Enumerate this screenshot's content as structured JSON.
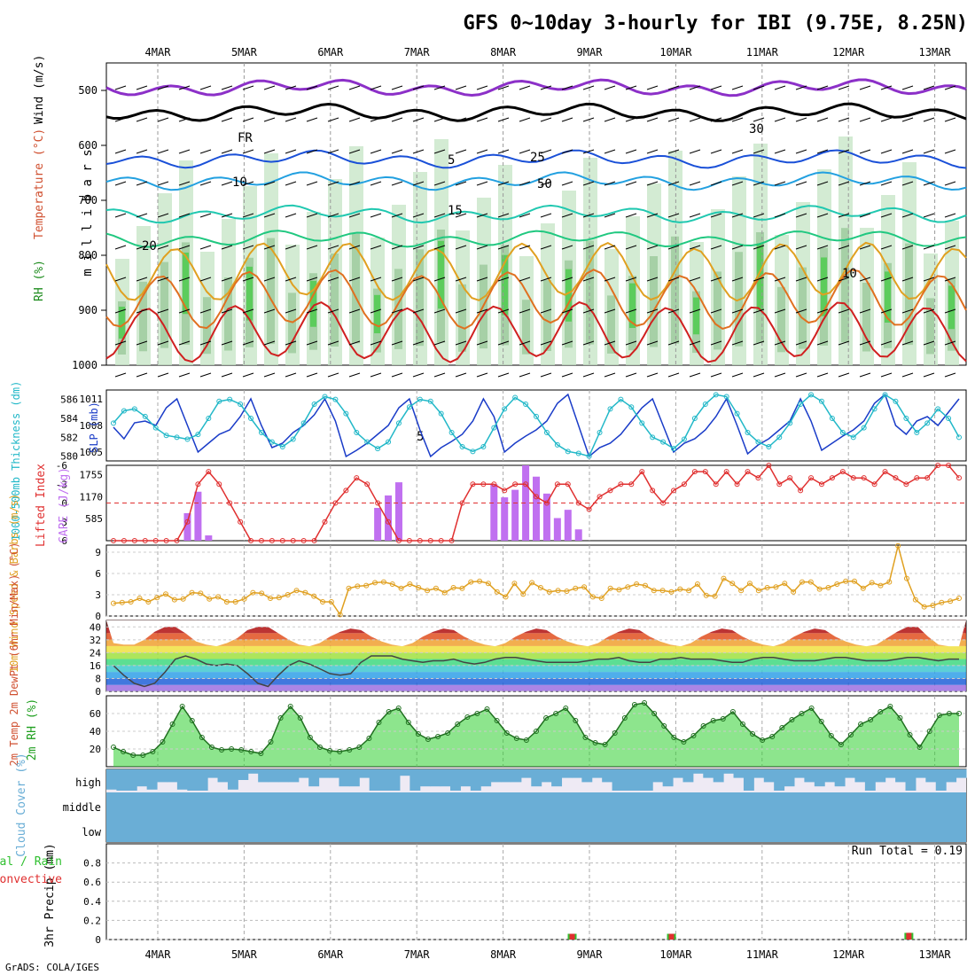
{
  "header": {
    "title": "GFS 0~10day 3-hourly for IBI (9.75E, 8.25N)",
    "credit": "GrADS: COLA/IGES"
  },
  "dates": [
    "4MAR",
    "5MAR",
    "6MAR",
    "7MAR",
    "8MAR",
    "9MAR",
    "10MAR",
    "11MAR",
    "12MAR",
    "13MAR"
  ],
  "colors": {
    "slp": "#1a3cc8",
    "thickness": "#22b8c8",
    "lifted_index": "#e03030",
    "cape": "#c070f0",
    "wind_speed": "#e0a020",
    "rh_line": "#20a020",
    "rh_fill": "#30d030",
    "cloud": "#6aaed6",
    "cloud_bg": "#eeeaf4",
    "precip_total": "#30c030",
    "precip_conv": "#e03030"
  },
  "chart_data": [
    {
      "panel": "sounding",
      "type": "heatmap",
      "ylabel": "m i l l i b a r s",
      "legend": [
        "RH (%)",
        "Temperature (°C)",
        "Wind (m/s)"
      ],
      "ylim": [
        1000,
        450
      ],
      "yticks": [
        500,
        600,
        700,
        800,
        900,
        1000
      ],
      "contour_labels": [
        "5",
        "FR",
        "5",
        "10",
        "15",
        "20",
        "25",
        "30",
        "50",
        "10"
      ]
    },
    {
      "panel": "slp_thickness",
      "type": "line",
      "ylabel_left": "1000-500mb Thickness (dm)",
      "ylabel_right": "SLP (mb)",
      "yticks_left": [
        580,
        582,
        584,
        586
      ],
      "yticks_right": [
        1005,
        1008,
        1011
      ],
      "series": [
        {
          "name": "SLP",
          "axis": "right",
          "values": [
            1007.8,
            1006.5,
            1008.3,
            1008.5,
            1008.0,
            1010.0,
            1011.0,
            1008.0,
            1005.0,
            1006.0,
            1007.0,
            1007.5,
            1009.0,
            1011.0,
            1008.0,
            1005.5,
            1006.0,
            1007.2,
            1008.0,
            1009.2,
            1011.0,
            1008.5,
            1004.5,
            1005.2,
            1006.0,
            1007.0,
            1008.0,
            1010.0,
            1011.0,
            1007.5,
            1004.5,
            1005.5,
            1006.2,
            1007.0,
            1008.5,
            1011.0,
            1009.0,
            1005.0,
            1006.0,
            1006.8,
            1007.5,
            1008.5,
            1010.5,
            1011.5,
            1008.0,
            1004.5,
            1005.5,
            1006.0,
            1007.0,
            1008.5,
            1010.0,
            1011.0,
            1008.0,
            1005.0,
            1006.0,
            1006.5,
            1007.5,
            1009.0,
            1011.0,
            1008.0,
            1004.8,
            1005.8,
            1006.5,
            1007.5,
            1008.5,
            1011.0,
            1008.5,
            1005.2,
            1006.0,
            1006.8,
            1007.5,
            1008.5,
            1010.5,
            1011.5,
            1008.0,
            1007.0,
            1008.5,
            1009.0,
            1008.0,
            1009.5,
            1011.0
          ]
        },
        {
          "name": "Thickness",
          "axis": "left",
          "values": [
            583.5,
            584.8,
            585.0,
            584.2,
            583.0,
            582.2,
            582.0,
            581.8,
            582.3,
            584.0,
            585.8,
            586.0,
            585.5,
            584.0,
            582.5,
            581.5,
            581.0,
            581.8,
            583.5,
            585.5,
            586.3,
            586.0,
            584.5,
            582.5,
            581.5,
            580.8,
            581.5,
            583.5,
            585.2,
            586.0,
            585.8,
            584.5,
            582.5,
            581.0,
            580.5,
            581.0,
            583.0,
            585.0,
            586.2,
            585.5,
            584.2,
            582.5,
            581.2,
            580.5,
            580.3,
            580.0,
            582.5,
            585.0,
            586.0,
            585.2,
            583.5,
            582.0,
            581.5,
            580.8,
            581.8,
            584.0,
            585.5,
            586.5,
            586.3,
            584.5,
            582.5,
            581.5,
            581.0,
            582.0,
            583.5,
            585.5,
            586.5,
            585.8,
            584.0,
            582.5,
            582.0,
            583.0,
            585.0,
            586.5,
            585.8,
            584.0,
            582.5,
            583.5,
            585.0,
            584.0,
            582.0
          ]
        }
      ]
    },
    {
      "panel": "li_cape",
      "type": "bar",
      "ylabel_left": "Lifted Index",
      "ylabel_right": "CAPE (J/kg)",
      "yticks_left": [
        -6,
        -3,
        0,
        3,
        6
      ],
      "yticks_right": [
        585,
        1170,
        1755
      ],
      "series": [
        {
          "name": "Lifted Index",
          "values": [
            6,
            6,
            6,
            6,
            6,
            6,
            6,
            3,
            -3,
            -5,
            -3,
            0,
            3,
            6,
            6,
            6,
            6,
            6,
            6,
            6,
            3,
            0,
            -2,
            -4,
            -3,
            0,
            3,
            6,
            6,
            6,
            6,
            6,
            6,
            0,
            -3,
            -3,
            -3,
            -2,
            -3,
            -3,
            -1,
            0,
            -3,
            -3,
            0,
            1,
            -1,
            -2,
            -3,
            -3,
            -5,
            -2,
            0,
            -2,
            -3,
            -5,
            -5,
            -3,
            -5,
            -3,
            -5,
            -4,
            -6,
            -3,
            -4,
            -2,
            -4,
            -3,
            -4,
            -5,
            -4,
            -4,
            -3,
            -5,
            -4,
            -3,
            -4,
            -4,
            -6,
            -6,
            -4
          ]
        },
        {
          "name": "CAPE",
          "values": [
            0,
            0,
            0,
            0,
            0,
            0,
            0,
            730,
            1300,
            140,
            0,
            0,
            0,
            0,
            0,
            0,
            0,
            0,
            0,
            0,
            0,
            0,
            0,
            0,
            0,
            870,
            1200,
            1550,
            0,
            0,
            0,
            0,
            0,
            0,
            0,
            0,
            1500,
            1150,
            1350,
            2000,
            1700,
            1250,
            600,
            820,
            300,
            0,
            0,
            0,
            0,
            0,
            0,
            0,
            0,
            0,
            0,
            0,
            0,
            0,
            0,
            0,
            0,
            0,
            0,
            0,
            0,
            0,
            0,
            0,
            0,
            0,
            0,
            0,
            0,
            0,
            0,
            0,
            0,
            0,
            0,
            0,
            0
          ]
        }
      ]
    },
    {
      "panel": "wind10m",
      "type": "line",
      "ylabel": "10m Wind Speed & Barbs (m/s)",
      "yticks": [
        0,
        3,
        6,
        9
      ],
      "series": [
        {
          "name": "10m Wind Speed",
          "values": [
            1.8,
            1.9,
            2.0,
            2.5,
            2.0,
            2.6,
            3.1,
            2.3,
            2.4,
            3.3,
            3.2,
            2.4,
            2.7,
            2.0,
            2.0,
            2.4,
            3.3,
            3.2,
            2.5,
            2.6,
            3.0,
            3.6,
            3.3,
            2.8,
            2.0,
            2.0,
            0.2,
            3.9,
            4.2,
            4.3,
            4.7,
            4.8,
            4.5,
            3.9,
            4.5,
            4.0,
            3.6,
            3.9,
            3.3,
            4.0,
            3.9,
            4.8,
            4.9,
            4.6,
            3.4,
            2.7,
            4.6,
            3.1,
            4.7,
            4.0,
            3.4,
            3.6,
            3.5,
            3.9,
            4.1,
            2.7,
            2.5,
            3.9,
            3.7,
            4.1,
            4.5,
            4.3,
            3.6,
            3.6,
            3.4,
            3.8,
            3.6,
            4.5,
            2.9,
            2.8,
            5.3,
            4.6,
            3.6,
            4.6,
            3.6,
            4.0,
            4.1,
            4.6,
            3.4,
            4.8,
            4.8,
            3.8,
            4.0,
            4.5,
            4.9,
            4.9,
            3.9,
            4.7,
            4.3,
            4.8,
            9.9,
            5.3,
            2.3,
            1.3,
            1.5,
            1.9,
            2.1,
            2.5
          ]
        }
      ]
    },
    {
      "panel": "temp2m",
      "type": "area",
      "ylabel": "2m Temp 2m DewPt (6hr Min/Max) (°C)",
      "yticks": [
        0,
        8,
        16,
        24,
        32,
        40
      ],
      "series": [
        {
          "name": "2m Temp",
          "values": [
            30,
            29,
            29,
            32,
            37,
            40,
            40,
            36,
            31,
            29,
            28,
            30,
            33,
            38,
            40,
            40,
            36,
            32,
            29,
            28,
            30,
            34,
            37,
            39,
            38,
            34,
            31,
            29,
            28,
            30,
            34,
            37,
            39,
            38,
            34,
            31,
            29,
            28,
            30,
            34,
            37,
            39,
            38,
            34,
            31,
            29,
            28,
            30,
            34,
            37,
            39,
            38,
            34,
            31,
            29,
            28,
            30,
            34,
            37,
            39,
            38,
            34,
            31,
            29,
            28,
            30,
            34,
            37,
            39,
            38,
            34,
            31,
            29,
            28,
            29,
            33,
            37,
            40,
            40,
            34,
            29,
            28,
            28
          ]
        },
        {
          "name": "2m DewPt",
          "values": [
            16,
            10,
            5,
            3,
            5,
            12,
            20,
            22,
            20,
            17,
            16,
            17,
            16,
            11,
            5,
            3,
            10,
            16,
            19,
            17,
            14,
            11,
            10,
            11,
            18,
            22,
            22,
            22,
            20,
            19,
            18,
            19,
            19,
            20,
            18,
            17,
            18,
            20,
            21,
            21,
            20,
            19,
            18,
            18,
            18,
            18,
            19,
            20,
            20,
            21,
            19,
            18,
            18,
            20,
            20,
            21,
            20,
            20,
            20,
            19,
            18,
            18,
            20,
            21,
            21,
            20,
            19,
            19,
            19,
            20,
            21,
            21,
            20,
            19,
            19,
            19,
            20,
            21,
            21,
            20,
            19,
            20,
            20
          ]
        }
      ]
    },
    {
      "panel": "rh2m",
      "type": "area",
      "ylabel": "2m RH (%)",
      "yticks": [
        20,
        40,
        60
      ],
      "series": [
        {
          "name": "2m RH",
          "values": [
            22,
            17,
            13,
            13,
            17,
            28,
            48,
            68,
            52,
            33,
            22,
            19,
            20,
            19,
            17,
            15,
            28,
            55,
            68,
            55,
            33,
            22,
            18,
            17,
            19,
            22,
            32,
            50,
            62,
            66,
            50,
            37,
            31,
            34,
            38,
            48,
            56,
            60,
            65,
            52,
            38,
            32,
            30,
            40,
            55,
            60,
            66,
            52,
            33,
            27,
            25,
            38,
            55,
            70,
            72,
            60,
            46,
            33,
            28,
            35,
            46,
            52,
            54,
            62,
            48,
            37,
            30,
            34,
            44,
            53,
            60,
            66,
            51,
            35,
            25,
            36,
            48,
            53,
            62,
            68,
            55,
            36,
            22,
            40,
            58,
            60,
            60
          ]
        }
      ]
    },
    {
      "panel": "cloud",
      "type": "heatmap",
      "ylabel": "Cloud Cover (%)",
      "rows": [
        "high",
        "middle",
        "low"
      ],
      "high_values": [
        95,
        100,
        100,
        80,
        95,
        60,
        60,
        95,
        100,
        100,
        40,
        60,
        95,
        50,
        20,
        60,
        60,
        60,
        60,
        40,
        80,
        40,
        40,
        80,
        80,
        40,
        100,
        100,
        100,
        30,
        100,
        80,
        80,
        80,
        100,
        80,
        100,
        80,
        60,
        60,
        60,
        40,
        80,
        60,
        80,
        40,
        40,
        60,
        40,
        60,
        100,
        100,
        100,
        100,
        60,
        80,
        40,
        60,
        20,
        40,
        60,
        20,
        40,
        100,
        40,
        60,
        100,
        80,
        40,
        60,
        80,
        60,
        80,
        40,
        60,
        100,
        60,
        40,
        60,
        100,
        40,
        60,
        100,
        60,
        40
      ],
      "middle_values": [
        100,
        100,
        100,
        100,
        100,
        100,
        100,
        100,
        100,
        100,
        100,
        100,
        100,
        100,
        100,
        100,
        100,
        100,
        100,
        100,
        100,
        100,
        100,
        100,
        100,
        100,
        100,
        100,
        100,
        100,
        100,
        100,
        100,
        100,
        100,
        100,
        100,
        100,
        100,
        100,
        100,
        100,
        100,
        100,
        100,
        100,
        100,
        100,
        100,
        100,
        100,
        100,
        100,
        100,
        100,
        100,
        100,
        100,
        100,
        100,
        100,
        100,
        100,
        100,
        100,
        100,
        100,
        100,
        100,
        100,
        100,
        100,
        100,
        100,
        100,
        100,
        100,
        100,
        100,
        100,
        100,
        100,
        100,
        100,
        100
      ],
      "low_values": [
        100,
        100,
        100,
        100,
        100,
        100,
        100,
        100,
        100,
        100,
        100,
        100,
        100,
        100,
        100,
        100,
        100,
        100,
        100,
        100,
        100,
        100,
        100,
        100,
        100,
        100,
        100,
        100,
        100,
        100,
        100,
        100,
        100,
        100,
        100,
        100,
        100,
        100,
        100,
        100,
        100,
        100,
        100,
        100,
        100,
        100,
        100,
        100,
        100,
        100,
        100,
        100,
        100,
        100,
        100,
        100,
        100,
        100,
        100,
        100,
        100,
        100,
        100,
        100,
        100,
        100,
        100,
        100,
        100,
        100,
        100,
        100,
        100,
        100,
        100,
        100,
        100,
        100,
        100,
        100,
        100,
        100,
        100,
        100,
        100
      ]
    },
    {
      "panel": "precip",
      "type": "bar",
      "ylabel": "3hr Precip (mm)",
      "legend_total": "Total / Rain",
      "legend_conv": "Convective",
      "run_total": "Run Total = 0.19",
      "yticks": [
        "0",
        "0.2",
        "0.4",
        "0.6",
        "0.8"
      ],
      "ylim": [
        0,
        1.0
      ],
      "events": [
        {
          "date_index": 5,
          "fraction": -0.2,
          "total": 0.06,
          "convective": 0.06
        },
        {
          "date_index": 6,
          "fraction": -0.05,
          "total": 0.06,
          "convective": 0.06
        },
        {
          "date_index": 9,
          "fraction": -0.3,
          "total": 0.07,
          "convective": 0.07
        }
      ]
    }
  ]
}
